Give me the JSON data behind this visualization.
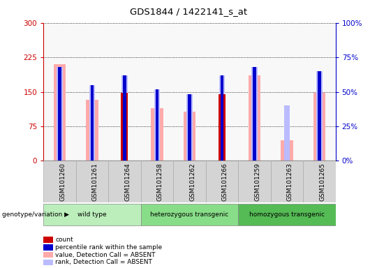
{
  "title": "GDS1844 / 1422141_s_at",
  "samples": [
    "GSM101260",
    "GSM101261",
    "GSM101264",
    "GSM101258",
    "GSM101262",
    "GSM101266",
    "GSM101259",
    "GSM101263",
    "GSM101265"
  ],
  "groups": [
    {
      "name": "wild type",
      "indices": [
        0,
        1,
        2
      ],
      "color": "#aaffaa"
    },
    {
      "name": "heterozygous transgenic",
      "indices": [
        3,
        4,
        5
      ],
      "color": "#77ee77"
    },
    {
      "name": "homozygous transgenic",
      "indices": [
        6,
        7,
        8
      ],
      "color": "#44cc44"
    }
  ],
  "count_values": [
    0,
    0,
    147,
    0,
    0,
    144,
    0,
    0,
    0
  ],
  "rank_values": [
    68,
    55,
    62,
    52,
    48,
    62,
    68,
    0,
    65
  ],
  "absent_value_values": [
    210,
    133,
    0,
    115,
    107,
    0,
    185,
    45,
    148
  ],
  "absent_rank_values": [
    68,
    55,
    62,
    52,
    48,
    62,
    68,
    40,
    65
  ],
  "left_ylim": [
    0,
    300
  ],
  "right_ylim": [
    0,
    100
  ],
  "left_yticks": [
    0,
    75,
    150,
    225,
    300
  ],
  "right_yticks": [
    0,
    25,
    50,
    75,
    100
  ],
  "left_yticklabels": [
    "0",
    "75",
    "150",
    "225",
    "300"
  ],
  "right_yticklabels": [
    "0%",
    "25%",
    "50%",
    "75%",
    "100%"
  ],
  "color_count": "#cc0000",
  "color_rank": "#0000cc",
  "color_absent_value": "#ffaaaa",
  "color_absent_rank": "#bbbbff",
  "color_left_axis": "#cc0000",
  "color_right_axis": "#0000cc",
  "legend_items": [
    {
      "label": "count",
      "color": "#cc0000"
    },
    {
      "label": "percentile rank within the sample",
      "color": "#0000cc"
    },
    {
      "label": "value, Detection Call = ABSENT",
      "color": "#ffaaaa"
    },
    {
      "label": "rank, Detection Call = ABSENT",
      "color": "#bbbbff"
    }
  ],
  "genotype_label": "genotype/variation",
  "bg_color": "#ffffff"
}
